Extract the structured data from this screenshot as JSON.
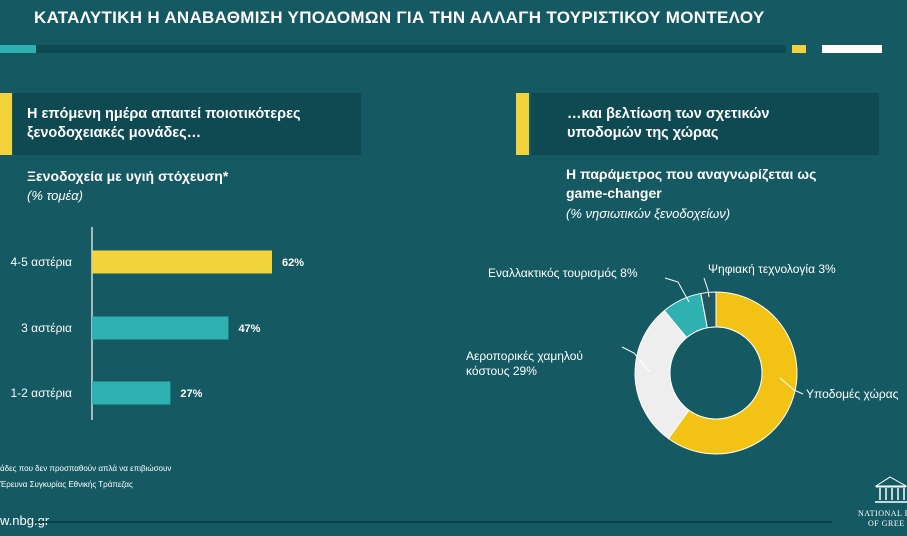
{
  "title": "ΚΑΤΑΛΥΤΙΚΗ Η ΑΝΑΒΑΘΜΙΣΗ ΥΠΟΔΟΜΩΝ ΓΙΑ ΤΗΝ ΑΛΛΑΓΗ ΤΟΥΡΙΣΤΙΚΟΥ ΜΟΝΤΕΛΟΥ",
  "colors": {
    "background": "#155963",
    "panel": "#0f4a53",
    "yellow": "#f2d33c",
    "teal": "#2fb1b1",
    "pie_yellow": "#f2c314",
    "pie_grey": "#eeeeee",
    "pie_dark": "#21585f"
  },
  "left_panel": {
    "header": [
      "Η επόμενη ημέρα απαιτεί ποιοτικότερες",
      "ξενοδοχειακές μονάδες…"
    ],
    "subtitle": "Ξενοδοχεία με υγιή στόχευση*",
    "note": "(% τομέα)"
  },
  "right_panel": {
    "header": [
      "…και βελτίωση των σχετικών",
      "υποδομών της χώρας"
    ],
    "subtitle": [
      "Η παράμετρος που  αναγνωρίζεται ως",
      "game-changer"
    ],
    "note": "(% νησιωτικών ξενοδοχείων)"
  },
  "chart_data": [
    {
      "type": "bar",
      "orientation": "horizontal",
      "categories": [
        "4-5 αστέρια",
        "3 αστέρια",
        "1-2 αστέρια"
      ],
      "values": [
        62,
        47,
        27
      ],
      "value_labels": [
        "62%",
        "47%",
        "27%"
      ],
      "title": "Ξενοδοχεία με υγιή στόχευση*",
      "xlabel": "",
      "ylabel": "",
      "unit": "% τομέα",
      "xlim": [
        0,
        100
      ],
      "grid": false,
      "bar_colors": [
        "#f2d33c",
        "#2fb1b1",
        "#2fb1b1"
      ]
    },
    {
      "type": "pie",
      "donut": true,
      "title": "Η παράμετρος που  αναγνωρίζεται ως game-changer",
      "unit": "% νησιωτικών ξενοδοχείων",
      "slices": [
        {
          "label": "Υποδομές χώρας",
          "label_text": "Υποδομές χώρας",
          "value": 60,
          "color": "#f2c314"
        },
        {
          "label": "Αεροπορικές χαμηλού κόστους",
          "label_text": [
            "Αεροπορικές χαμηλού",
            "κόστους 29%"
          ],
          "value": 29,
          "color": "#eeeeee"
        },
        {
          "label": "Εναλλακτικός τουρισμός",
          "label_text": "Εναλλακτικός τουρισμός 8%",
          "value": 8,
          "color": "#2fb1b1"
        },
        {
          "label": "Ψηφιακή τεχνολογία",
          "label_text": "Ψηφιακή τεχνολογία 3%",
          "value": 3,
          "color": "#21585f"
        }
      ]
    }
  ],
  "footnotes": [
    "άδες που δεν προσπαθούν απλά να επιβιώσουν",
    "Έρευνα Συγκυρίας Εθνικής Τράπεζας"
  ],
  "url": "w.nbg.gr",
  "logo": [
    "NATIONAL B",
    "OF GREE"
  ]
}
